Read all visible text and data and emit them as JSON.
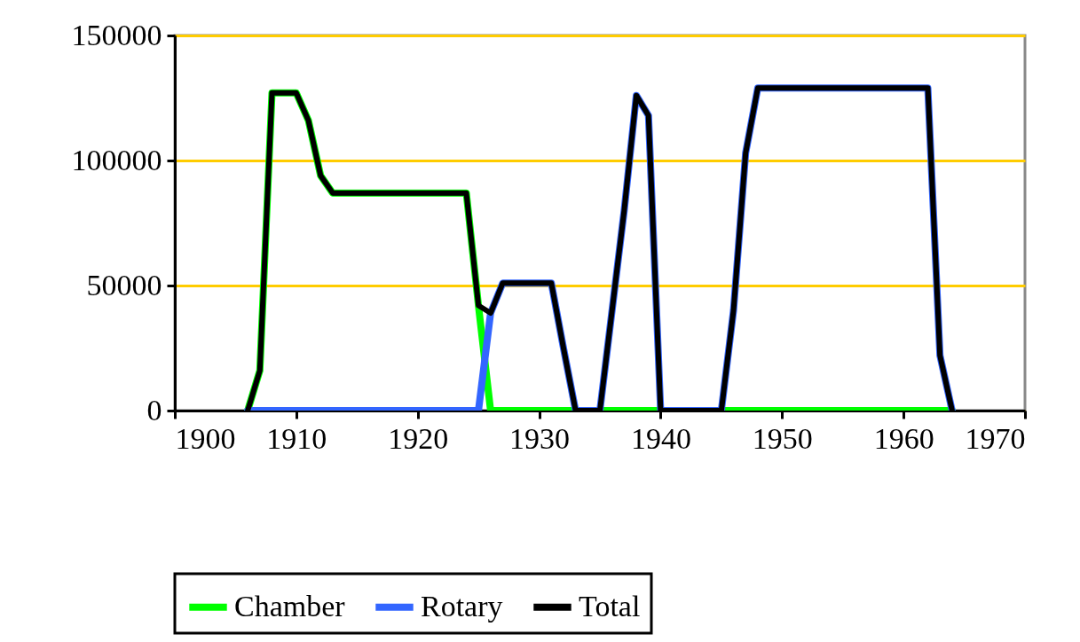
{
  "chart_data": {
    "type": "line",
    "x": [
      1906,
      1907,
      1908,
      1909,
      1910,
      1911,
      1912,
      1913,
      1914,
      1915,
      1916,
      1917,
      1918,
      1919,
      1920,
      1921,
      1922,
      1923,
      1924,
      1925,
      1926,
      1927,
      1928,
      1929,
      1930,
      1931,
      1932,
      1933,
      1934,
      1935,
      1936,
      1937,
      1938,
      1939,
      1940,
      1941,
      1942,
      1943,
      1944,
      1945,
      1946,
      1947,
      1948,
      1949,
      1950,
      1951,
      1952,
      1953,
      1954,
      1955,
      1956,
      1957,
      1958,
      1959,
      1960,
      1961,
      1962,
      1963,
      1964
    ],
    "series": [
      {
        "name": "Chamber",
        "color": "#00ff00",
        "values": [
          0,
          16000,
          127000,
          127000,
          127000,
          116000,
          94000,
          87000,
          87000,
          87000,
          87000,
          87000,
          87000,
          87000,
          87000,
          87000,
          87000,
          87000,
          87000,
          42000,
          0,
          0,
          0,
          0,
          0,
          0,
          0,
          0,
          0,
          0,
          0,
          0,
          0,
          0,
          0,
          0,
          0,
          0,
          0,
          0,
          0,
          0,
          0,
          0,
          0,
          0,
          0,
          0,
          0,
          0,
          0,
          0,
          0,
          0,
          0,
          0,
          0,
          0,
          0
        ]
      },
      {
        "name": "Rotary",
        "color": "#3366ff",
        "values": [
          0,
          0,
          0,
          0,
          0,
          0,
          0,
          0,
          0,
          0,
          0,
          0,
          0,
          0,
          0,
          0,
          0,
          0,
          0,
          0,
          39000,
          51000,
          51000,
          51000,
          51000,
          51000,
          25000,
          0,
          0,
          0,
          40000,
          80000,
          126000,
          118000,
          0,
          0,
          0,
          0,
          0,
          0,
          40000,
          103000,
          129000,
          129000,
          129000,
          129000,
          129000,
          129000,
          129000,
          129000,
          129000,
          129000,
          129000,
          129000,
          129000,
          129000,
          129000,
          22000,
          0
        ]
      },
      {
        "name": "Total",
        "color": "#000000",
        "values": [
          0,
          16000,
          127000,
          127000,
          127000,
          116000,
          94000,
          87000,
          87000,
          87000,
          87000,
          87000,
          87000,
          87000,
          87000,
          87000,
          87000,
          87000,
          87000,
          42000,
          39000,
          51000,
          51000,
          51000,
          51000,
          51000,
          25000,
          0,
          0,
          0,
          40000,
          80000,
          126000,
          118000,
          0,
          0,
          0,
          0,
          0,
          0,
          40000,
          103000,
          129000,
          129000,
          129000,
          129000,
          129000,
          129000,
          129000,
          129000,
          129000,
          129000,
          129000,
          129000,
          129000,
          129000,
          129000,
          22000,
          0
        ]
      }
    ],
    "xlim": [
      1900,
      1970
    ],
    "xticks": [
      1900,
      1910,
      1920,
      1930,
      1940,
      1950,
      1960,
      1970
    ],
    "ylim": [
      0,
      150000
    ],
    "yticks": [
      0,
      50000,
      100000,
      150000
    ],
    "grid": "y",
    "legend": "bottom",
    "marker": "none",
    "line_style": "solid"
  }
}
